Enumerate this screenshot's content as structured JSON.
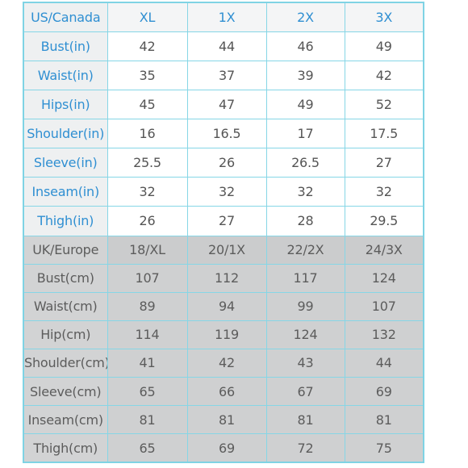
{
  "us_section": {
    "header": [
      "US/Canada",
      "XL",
      "1X",
      "2X",
      "3X"
    ],
    "rows": [
      [
        "Bust(in)",
        "42",
        "44",
        "46",
        "49"
      ],
      [
        "Waist(in)",
        "35",
        "37",
        "39",
        "42"
      ],
      [
        "Hips(in)",
        "45",
        "47",
        "49",
        "52"
      ],
      [
        "Shoulder(in)",
        "16",
        "16.5",
        "17",
        "17.5"
      ],
      [
        "Sleeve(in)",
        "25.5",
        "26",
        "26.5",
        "27"
      ],
      [
        "Inseam(in)",
        "32",
        "32",
        "32",
        "32"
      ],
      [
        "Thigh(in)",
        "26",
        "27",
        "28",
        "29.5"
      ]
    ]
  },
  "uk_section": {
    "header": [
      "UK/Europe",
      "18/XL",
      "20/1X",
      "22/2X",
      "24/3X"
    ],
    "rows": [
      [
        "Bust(cm)",
        "107",
        "112",
        "117",
        "124"
      ],
      [
        "Waist(cm)",
        "89",
        "94",
        "99",
        "107"
      ],
      [
        "Hip(cm)",
        "114",
        "119",
        "124",
        "132"
      ],
      [
        "Shoulder(cm)",
        "41",
        "42",
        "43",
        "44"
      ],
      [
        "Sleeve(cm)",
        "65",
        "66",
        "67",
        "69"
      ],
      [
        "Inseam(cm)",
        "81",
        "81",
        "81",
        "81"
      ],
      [
        "Thigh(cm)",
        "65",
        "69",
        "72",
        "75"
      ]
    ]
  }
}
